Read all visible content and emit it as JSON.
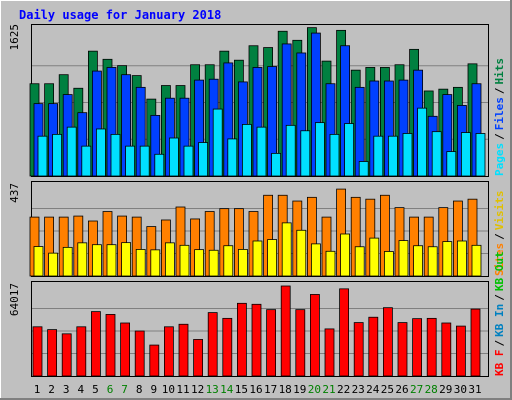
{
  "chart_data": [
    {
      "type": "bar",
      "title": "Daily usage for January 2018",
      "y_tick_label": "1625",
      "ylim": [
        0,
        1625
      ],
      "legend": [
        "Pages",
        "Files",
        "Hits"
      ],
      "legend_placement": "right",
      "x": [
        "1",
        "2",
        "3",
        "4",
        "5",
        "6",
        "7",
        "8",
        "9",
        "10",
        "11",
        "12",
        "13",
        "14",
        "15",
        "16",
        "17",
        "18",
        "19",
        "20",
        "21",
        "22",
        "23",
        "24",
        "25",
        "26",
        "27",
        "28",
        "29",
        "30",
        "31"
      ],
      "series": [
        {
          "name": "Hits",
          "color": "#008040",
          "values": [
            1020,
            1020,
            1120,
            970,
            1380,
            1290,
            1220,
            1110,
            850,
            1000,
            1000,
            1230,
            1230,
            1380,
            1280,
            1440,
            1420,
            1600,
            1500,
            1640,
            1270,
            1610,
            1170,
            1200,
            1200,
            1230,
            1400,
            940,
            960,
            980,
            1240
          ]
        },
        {
          "name": "Files",
          "color": "#0040ff",
          "values": [
            800,
            800,
            900,
            700,
            1160,
            1200,
            1120,
            980,
            670,
            860,
            860,
            1060,
            1070,
            1250,
            1040,
            1200,
            1210,
            1460,
            1360,
            1580,
            1020,
            1440,
            980,
            1050,
            1050,
            1060,
            1170,
            660,
            900,
            780,
            1020
          ]
        },
        {
          "name": "Pages",
          "color": "#00e0ff",
          "values": [
            440,
            460,
            540,
            330,
            520,
            460,
            330,
            330,
            240,
            420,
            330,
            370,
            740,
            410,
            570,
            540,
            250,
            560,
            500,
            590,
            460,
            580,
            160,
            440,
            440,
            470,
            750,
            490,
            270,
            480,
            470
          ]
        }
      ]
    },
    {
      "type": "bar",
      "y_tick_label": "437",
      "ylim": [
        0,
        437
      ],
      "legend": [
        "Sites",
        "Visits"
      ],
      "legend_placement": "right",
      "x": [
        "1",
        "2",
        "3",
        "4",
        "5",
        "6",
        "7",
        "8",
        "9",
        "10",
        "11",
        "12",
        "13",
        "14",
        "15",
        "16",
        "17",
        "18",
        "19",
        "20",
        "21",
        "22",
        "23",
        "24",
        "25",
        "26",
        "27",
        "28",
        "29",
        "30",
        "31"
      ],
      "series": [
        {
          "name": "Sites",
          "color": "#ff8000",
          "values": [
            286,
            286,
            286,
            291,
            267,
            313,
            291,
            286,
            240,
            272,
            335,
            277,
            313,
            327,
            327,
            313,
            392,
            392,
            364,
            382,
            286,
            422,
            382,
            373,
            392,
            332,
            286,
            286,
            332,
            364,
            373
          ]
        },
        {
          "name": "Visits",
          "color": "#ffff00",
          "values": [
            143,
            111,
            139,
            161,
            152,
            152,
            162,
            129,
            127,
            161,
            149,
            128,
            125,
            147,
            129,
            170,
            177,
            258,
            222,
            156,
            120,
            204,
            142,
            184,
            119,
            172,
            147,
            142,
            167,
            170,
            149
          ]
        }
      ]
    },
    {
      "type": "bar",
      "y_tick_label": "64017",
      "ylim": [
        0,
        64017
      ],
      "legend": [
        "KB F",
        "KB In",
        "KB Out"
      ],
      "legend_placement": "right",
      "x": [
        "1",
        "2",
        "3",
        "4",
        "5",
        "6",
        "7",
        "8",
        "9",
        "10",
        "11",
        "12",
        "13",
        "14",
        "15",
        "16",
        "17",
        "18",
        "19",
        "20",
        "21",
        "22",
        "23",
        "24",
        "25",
        "26",
        "27",
        "28",
        "29",
        "30",
        "31"
      ],
      "series": [
        {
          "name": "KB F",
          "color": "#ff0000",
          "values": [
            35000,
            33000,
            30000,
            35000,
            45800,
            43800,
            37700,
            32000,
            22000,
            35000,
            36800,
            26000,
            45100,
            41000,
            51700,
            51000,
            47200,
            64017,
            47200,
            58000,
            33500,
            62000,
            38000,
            41800,
            48600,
            38000,
            40800,
            41000,
            37700,
            35500,
            47600
          ]
        }
      ]
    }
  ],
  "labels": {
    "title": "Daily usage for January 2018",
    "tick_hits": "1625",
    "tick_sites": "437",
    "tick_kb": "64017",
    "legend_pages": "Pages",
    "legend_files": "Files",
    "legend_hits": "Hits",
    "legend_sites": "Sites",
    "legend_visits": "Visits",
    "legend_kbf": "KB F",
    "legend_kbin": "KB In",
    "legend_kbout": "KB Out",
    "legend_sep": "/"
  },
  "weekend_days": [
    6,
    7,
    13,
    14,
    20,
    21,
    27,
    28
  ],
  "colors": {
    "panel_bg": "#c0c0c0",
    "hits": "#008040",
    "files": "#0040ff",
    "pages": "#00e0ff",
    "sites": "#ff8000",
    "visits": "#ffff00",
    "kbf": "#ff0000",
    "kbin": "#0080c0",
    "kbout": "#00c000",
    "weekend": "#008000",
    "title": "#0000ff",
    "grid": "#808080"
  }
}
